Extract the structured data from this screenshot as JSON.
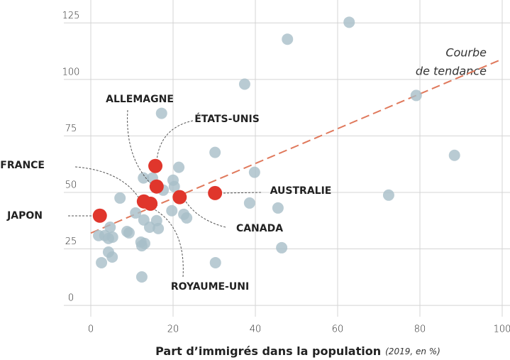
{
  "chart_data": {
    "type": "scatter",
    "xlabel": "Part d’immigrés dans la population",
    "xlabel_note": "(2019, en %)",
    "annotation": [
      "Courbe",
      "de tendance"
    ],
    "xlim": [
      0,
      100
    ],
    "ylim": [
      -5,
      132
    ],
    "xticks": [
      0,
      20,
      40,
      60,
      80,
      100
    ],
    "yticks": [
      0,
      25,
      50,
      75,
      100,
      125
    ],
    "grid": true,
    "trend": {
      "x": [
        0,
        100
      ],
      "y": [
        32,
        109
      ],
      "color": "#e0795c"
    },
    "series": [
      {
        "color": "#a7bec8",
        "x": [
          62.8,
          47.8,
          37.4,
          79.1,
          17.2,
          30.2,
          88.4,
          21.4,
          39.8,
          72.4,
          12.8,
          15.0,
          20.0,
          20.3,
          17.6,
          7.1,
          38.6,
          45.5,
          19.7,
          10.9,
          22.6,
          23.3,
          12.9,
          16.0,
          4.7,
          14.3,
          16.4,
          8.8,
          9.3,
          3.4,
          1.9,
          4.3,
          5.3,
          12.2,
          13.1,
          12.4,
          46.4,
          4.3,
          5.2,
          2.6,
          30.3,
          12.4
        ],
        "values": [
          125.3,
          117.8,
          97.9,
          92.9,
          85,
          67.7,
          66.4,
          61.1,
          58.9,
          48.8,
          56.4,
          56.4,
          55.4,
          52.6,
          51,
          47.5,
          45.3,
          43.1,
          41.9,
          40.9,
          40.3,
          38.7,
          37.8,
          37.5,
          34.6,
          34.6,
          34,
          32.7,
          32.1,
          30.9,
          30.9,
          29.6,
          30.2,
          28,
          27.4,
          26.4,
          25.5,
          23.6,
          21.4,
          18.9,
          18.9,
          12.6
        ]
      },
      {
        "color": "#e0362c",
        "labels": [
          "JAPON",
          "FRANCE",
          "ROYAUME-UNI",
          "ALLEMAGNE",
          "ÉTATS-UNIS",
          "CANADA",
          "AUSTRALIE"
        ],
        "label_colors": [
          "#222222",
          "#d6322a",
          "#222222",
          "#222222",
          "#222222",
          "#222222",
          "#222222"
        ],
        "x": [
          2.2,
          12.9,
          14.5,
          16.0,
          15.7,
          21.6,
          30.2
        ],
        "values": [
          39.7,
          46,
          45,
          52.6,
          61.7,
          47.9,
          49.7
        ]
      }
    ]
  }
}
